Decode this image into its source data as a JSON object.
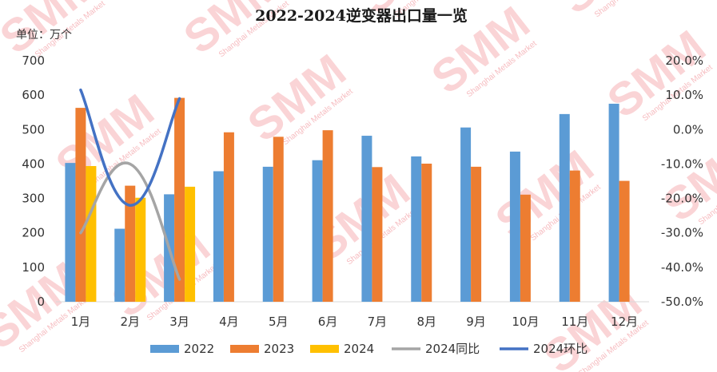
{
  "chart_data": {
    "type": "bar",
    "title": "2022-2024逆变器出口量一览",
    "unit_label": "单位：万个",
    "categories": [
      "1月",
      "2月",
      "3月",
      "4月",
      "5月",
      "6月",
      "7月",
      "8月",
      "9月",
      "10月",
      "11月",
      "12月"
    ],
    "y_left": {
      "ylim": [
        0,
        700
      ],
      "ticks": [
        "0",
        "100",
        "200",
        "300",
        "400",
        "500",
        "600",
        "700"
      ]
    },
    "y_right": {
      "ylim": [
        -0.5,
        0.2
      ],
      "ticks": [
        "-50.0%",
        "-40.0%",
        "-30.0%",
        "-20.0%",
        "-10.0%",
        "0.0%",
        "10.0%",
        "20.0%"
      ]
    },
    "series": [
      {
        "name": "2022",
        "type": "bar",
        "color": "#5b9bd5",
        "values": [
          403,
          212,
          312,
          379,
          392,
          411,
          482,
          422,
          506,
          436,
          545,
          575
        ]
      },
      {
        "name": "2023",
        "type": "bar",
        "color": "#ed7d31",
        "values": [
          563,
          337,
          592,
          492,
          479,
          498,
          391,
          401,
          392,
          311,
          381,
          351
        ]
      },
      {
        "name": "2024",
        "type": "bar",
        "color": "#ffc000",
        "values": [
          394,
          302,
          334,
          null,
          null,
          null,
          null,
          null,
          null,
          null,
          null,
          null
        ]
      },
      {
        "name": "2024同比",
        "type": "line",
        "axis": "right",
        "color": "#a5a5a5",
        "values": [
          -0.3,
          -0.1,
          -0.435,
          null,
          null,
          null,
          null,
          null,
          null,
          null,
          null,
          null
        ]
      },
      {
        "name": "2024环比",
        "type": "line",
        "axis": "right",
        "color": "#4472c4",
        "values": [
          0.115,
          -0.22,
          0.09,
          null,
          null,
          null,
          null,
          null,
          null,
          null,
          null,
          null
        ]
      }
    ],
    "legend_position": "bottom",
    "grid": false
  },
  "watermark": {
    "text": "SMM",
    "subtext": "Shanghai Metals Market"
  }
}
